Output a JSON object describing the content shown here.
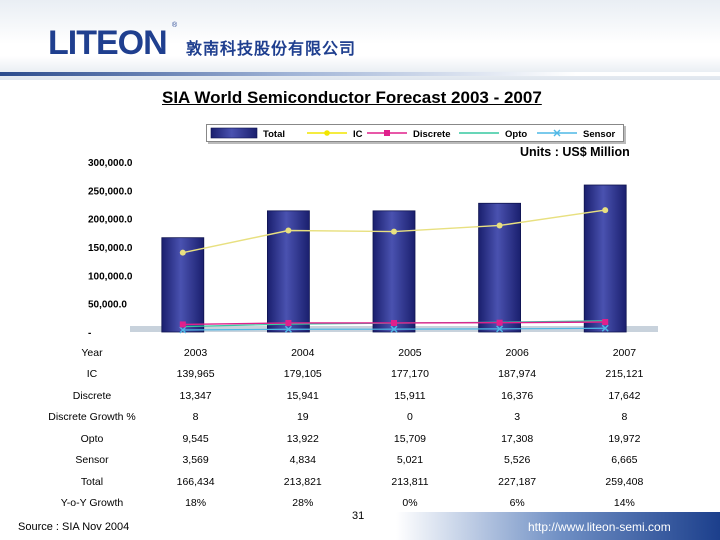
{
  "header": {
    "logo_text": "LITEON",
    "logo_mark": "®",
    "company_name": "敦南科技股份有限公司"
  },
  "title": "SIA World Semiconductor Forecast 2003 - 2007",
  "units": "Units : US$ Million",
  "footer": {
    "source": "Source : SIA Nov 2004",
    "page": "31",
    "url": "http://www.liteon-semi.com"
  },
  "table": {
    "rows": [
      {
        "label": "Year",
        "cells": [
          "2003",
          "2004",
          "2005",
          "2006",
          "2007"
        ]
      },
      {
        "label": "IC",
        "cells": [
          "139,965",
          "179,105",
          "177,170",
          "187,974",
          "215,121"
        ]
      },
      {
        "label": "Discrete",
        "cells": [
          "13,347",
          "15,941",
          "15,911",
          "16,376",
          "17,642"
        ]
      },
      {
        "label": "Discrete Growth %",
        "cells": [
          "8",
          "19",
          "0",
          "3",
          "8"
        ]
      },
      {
        "label": "Opto",
        "cells": [
          "9,545",
          "13,922",
          "15,709",
          "17,308",
          "19,972"
        ]
      },
      {
        "label": "Sensor",
        "cells": [
          "3,569",
          "4,834",
          "5,021",
          "5,526",
          "6,665"
        ]
      },
      {
        "label": "Total",
        "cells": [
          "166,434",
          "213,821",
          "213,811",
          "227,187",
          "259,408"
        ]
      },
      {
        "label": "Y-o-Y Growth",
        "cells": [
          "18%",
          "28%",
          "0%",
          "6%",
          "14%"
        ]
      }
    ]
  },
  "colors": {
    "total": "#1a1f6e",
    "ic": "#f2e600",
    "discrete": "#e0208c",
    "opto": "#36c9a0",
    "sensor": "#4fb8e6",
    "ic_line": "#e8e080"
  },
  "chart_data": {
    "type": "bar",
    "categories": [
      "2003",
      "2004",
      "2005",
      "2006",
      "2007"
    ],
    "yticks": [
      "300,000.0",
      "250,000.0",
      "200,000.0",
      "150,000.0",
      "100,000.0",
      "50,000.0",
      "-"
    ],
    "ylim": [
      0,
      300000
    ],
    "legend_position": "top",
    "grid": false,
    "series": [
      {
        "name": "Total",
        "kind": "bar",
        "values": [
          166434,
          213821,
          213811,
          227187,
          259408
        ]
      },
      {
        "name": "IC",
        "kind": "line",
        "values": [
          139965,
          179105,
          177170,
          187974,
          215121
        ]
      },
      {
        "name": "Discrete",
        "kind": "line",
        "values": [
          13347,
          15941,
          15911,
          16376,
          17642
        ]
      },
      {
        "name": "Opto",
        "kind": "line",
        "values": [
          9545,
          13922,
          15709,
          17308,
          19972
        ]
      },
      {
        "name": "Sensor",
        "kind": "line",
        "values": [
          3569,
          4834,
          5021,
          5526,
          6665
        ]
      }
    ]
  }
}
